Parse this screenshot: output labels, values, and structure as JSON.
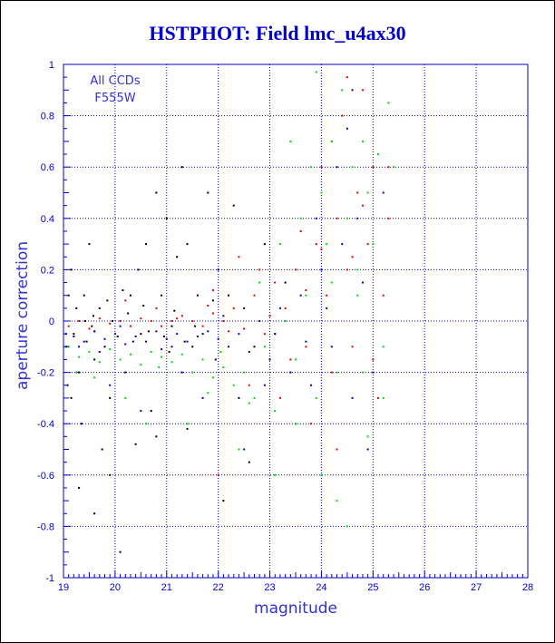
{
  "chart_data": {
    "type": "scatter",
    "title": "HSTPHOT: Field lmc_u4ax30",
    "xlabel": "magnitude",
    "ylabel": "aperture correction",
    "xlim": [
      19,
      28
    ],
    "ylim": [
      -1,
      1
    ],
    "x_ticks": [
      "19",
      "20",
      "21",
      "22",
      "23",
      "24",
      "25",
      "26",
      "27",
      "28"
    ],
    "y_ticks": [
      "-1",
      "-0.8",
      "-0.6",
      "-0.4",
      "-0.2",
      "0",
      "0.2",
      "0.4",
      "0.6",
      "0.8",
      "1"
    ],
    "grid": true,
    "legend": [
      "All CCDs",
      "F555W"
    ],
    "legend_position": "top-left",
    "colors": {
      "title": "#0000cc",
      "axis": "#0000cc",
      "grid": "#0000cc",
      "labels": "#3333cc"
    },
    "series": [
      {
        "color": "#000000",
        "points": [
          [
            19.05,
            -0.1
          ],
          [
            19.1,
            0.1
          ],
          [
            19.15,
            -0.3
          ],
          [
            19.2,
            -0.05
          ],
          [
            19.25,
            0.05
          ],
          [
            19.3,
            -0.2
          ],
          [
            19.35,
            -0.4
          ],
          [
            19.4,
            0.1
          ],
          [
            19.45,
            -0.08
          ],
          [
            19.5,
            0.3
          ],
          [
            19.55,
            -0.02
          ],
          [
            19.6,
            -0.15
          ],
          [
            19.7,
            0.05
          ],
          [
            19.75,
            -0.5
          ],
          [
            19.8,
            -0.1
          ],
          [
            19.85,
            0.08
          ],
          [
            19.9,
            -0.3
          ],
          [
            19.95,
            0.0
          ],
          [
            20.05,
            -0.06
          ],
          [
            20.1,
            -0.9
          ],
          [
            20.15,
            0.12
          ],
          [
            20.2,
            -0.2
          ],
          [
            20.3,
            0.1
          ],
          [
            20.4,
            -0.48
          ],
          [
            20.45,
            0.2
          ],
          [
            20.5,
            -0.05
          ],
          [
            20.6,
            0.3
          ],
          [
            20.7,
            -0.35
          ],
          [
            20.8,
            0.5
          ],
          [
            20.9,
            0.1
          ],
          [
            21.0,
            0.4
          ],
          [
            21.05,
            -0.12
          ],
          [
            21.1,
            -0.02
          ],
          [
            21.2,
            0.25
          ],
          [
            21.3,
            0.6
          ],
          [
            21.35,
            -0.08
          ],
          [
            21.4,
            0.3
          ],
          [
            21.5,
            -0.1
          ],
          [
            21.6,
            0.1
          ],
          [
            21.7,
            -0.05
          ],
          [
            21.8,
            0.5
          ],
          [
            21.9,
            0.08
          ],
          [
            21.95,
            -0.15
          ],
          [
            22.0,
            0.2
          ],
          [
            22.1,
            -0.7
          ],
          [
            22.2,
            0.1
          ],
          [
            22.3,
            0.45
          ],
          [
            22.4,
            -0.3
          ],
          [
            22.5,
            0.05
          ],
          [
            22.7,
            -0.1
          ],
          [
            22.9,
            0.3
          ],
          [
            23.1,
            -0.05
          ],
          [
            23.3,
            0.15
          ],
          [
            20.8,
            -0.45
          ],
          [
            19.9,
            -0.6
          ],
          [
            21.4,
            -0.42
          ],
          [
            22.6,
            -0.55
          ],
          [
            19.3,
            -0.65
          ],
          [
            19.6,
            -0.75
          ],
          [
            19.15,
            0.2
          ],
          [
            20.25,
            0.03
          ],
          [
            20.35,
            -0.08
          ],
          [
            20.55,
            0.06
          ],
          [
            20.65,
            -0.04
          ],
          [
            19.42,
            0.0
          ],
          [
            19.58,
            0.02
          ],
          [
            20.95,
            -0.06
          ],
          [
            21.15,
            0.04
          ],
          [
            21.55,
            -0.02
          ],
          [
            19.08,
            -0.25
          ]
        ]
      },
      {
        "color": "#ee0000",
        "points": [
          [
            19.1,
            -0.02
          ],
          [
            19.3,
            0.0
          ],
          [
            19.5,
            -0.03
          ],
          [
            19.7,
            0.01
          ],
          [
            19.9,
            -0.01
          ],
          [
            20.1,
            0.0
          ],
          [
            20.3,
            -0.02
          ],
          [
            20.5,
            0.01
          ],
          [
            20.7,
            0.0
          ],
          [
            20.9,
            -0.02
          ],
          [
            21.1,
            0.0
          ],
          [
            21.3,
            0.02
          ],
          [
            21.5,
            0.0
          ],
          [
            21.7,
            -0.02
          ],
          [
            21.9,
            0.03
          ],
          [
            22.1,
            0.0
          ],
          [
            22.3,
            0.05
          ],
          [
            22.5,
            -0.03
          ],
          [
            22.7,
            0.1
          ],
          [
            22.9,
            -0.05
          ],
          [
            23.1,
            0.15
          ],
          [
            23.3,
            0.05
          ],
          [
            23.5,
            0.2
          ],
          [
            23.7,
            -0.1
          ],
          [
            23.9,
            0.3
          ],
          [
            24.0,
            0.6
          ],
          [
            24.1,
            0.1
          ],
          [
            24.2,
            -0.2
          ],
          [
            24.3,
            0.4
          ],
          [
            24.4,
            0.8
          ],
          [
            24.5,
            0.2
          ],
          [
            24.6,
            -0.1
          ],
          [
            24.7,
            0.5
          ],
          [
            24.8,
            0.9
          ],
          [
            24.9,
            0.3
          ],
          [
            25.0,
            0.6
          ],
          [
            25.1,
            -0.3
          ],
          [
            25.2,
            0.1
          ],
          [
            25.3,
            0.4
          ],
          [
            23.2,
            -0.3
          ],
          [
            23.8,
            -0.4
          ],
          [
            24.3,
            -0.5
          ],
          [
            22.4,
            0.25
          ],
          [
            21.9,
            0.12
          ],
          [
            22.8,
            0.2
          ],
          [
            23.6,
            0.35
          ],
          [
            24.5,
            0.95
          ],
          [
            24.2,
            0.7
          ],
          [
            25.3,
            0.6
          ],
          [
            22.0,
            -0.6
          ],
          [
            22.6,
            -0.25
          ],
          [
            23.4,
            -0.15
          ],
          [
            24.6,
            0.25
          ],
          [
            20.2,
            0.08
          ],
          [
            20.8,
            0.05
          ],
          [
            19.6,
            -0.04
          ],
          [
            21.2,
            0.01
          ],
          [
            21.8,
            0.06
          ],
          [
            22.2,
            -0.04
          ],
          [
            23.0,
            0.02
          ],
          [
            23.7,
            0.12
          ],
          [
            24.0,
            0.28
          ],
          [
            24.8,
            0.45
          ],
          [
            25.0,
            -0.15
          ]
        ]
      },
      {
        "color": "#0000cc",
        "points": [
          [
            19.05,
            -0.05
          ],
          [
            19.2,
            -0.06
          ],
          [
            19.4,
            -0.08
          ],
          [
            19.6,
            -0.04
          ],
          [
            19.8,
            -0.07
          ],
          [
            20.0,
            -0.05
          ],
          [
            20.2,
            -0.09
          ],
          [
            20.4,
            -0.06
          ],
          [
            20.6,
            -0.08
          ],
          [
            20.8,
            -0.04
          ],
          [
            21.0,
            -0.07
          ],
          [
            21.2,
            -0.05
          ],
          [
            21.4,
            -0.08
          ],
          [
            21.6,
            -0.06
          ],
          [
            21.8,
            -0.04
          ],
          [
            22.0,
            -0.07
          ],
          [
            22.2,
            -0.1
          ],
          [
            22.4,
            -0.05
          ],
          [
            22.6,
            -0.12
          ],
          [
            22.8,
            0.0
          ],
          [
            23.0,
            -0.15
          ],
          [
            23.2,
            0.05
          ],
          [
            23.4,
            -0.2
          ],
          [
            23.6,
            0.1
          ],
          [
            23.8,
            -0.25
          ],
          [
            24.0,
            0.2
          ],
          [
            24.2,
            -0.1
          ],
          [
            24.4,
            0.3
          ],
          [
            24.6,
            -0.3
          ],
          [
            24.8,
            0.15
          ],
          [
            25.0,
            -0.2
          ],
          [
            25.2,
            0.5
          ],
          [
            24.3,
            0.6
          ],
          [
            24.7,
            0.4
          ],
          [
            23.5,
            -0.4
          ],
          [
            22.5,
            -0.5
          ],
          [
            21.7,
            -0.3
          ],
          [
            19.9,
            -0.25
          ],
          [
            20.5,
            -0.35
          ],
          [
            24.9,
            -0.5
          ],
          [
            23.9,
            0.4
          ],
          [
            24.5,
            0.75
          ],
          [
            19.3,
            -0.1
          ],
          [
            20.1,
            -0.02
          ],
          [
            21.1,
            -0.1
          ],
          [
            22.1,
            0.02
          ],
          [
            23.1,
            -0.05
          ],
          [
            24.1,
            0.05
          ],
          [
            19.7,
            -0.12
          ],
          [
            20.9,
            -0.11
          ],
          [
            22.9,
            -0.25
          ],
          [
            23.7,
            -0.08
          ],
          [
            24.6,
            0.9
          ],
          [
            21.3,
            -0.2
          ]
        ]
      },
      {
        "color": "#00dd00",
        "points": [
          [
            19.1,
            -0.1
          ],
          [
            19.3,
            -0.14
          ],
          [
            19.5,
            -0.12
          ],
          [
            19.7,
            -0.16
          ],
          [
            19.9,
            -0.11
          ],
          [
            20.1,
            -0.15
          ],
          [
            20.3,
            -0.13
          ],
          [
            20.5,
            -0.17
          ],
          [
            20.7,
            -0.12
          ],
          [
            20.9,
            -0.14
          ],
          [
            21.1,
            -0.16
          ],
          [
            21.3,
            -0.13
          ],
          [
            21.5,
            -0.2
          ],
          [
            21.7,
            -0.15
          ],
          [
            21.9,
            -0.22
          ],
          [
            22.1,
            -0.18
          ],
          [
            22.3,
            -0.25
          ],
          [
            22.5,
            -0.2
          ],
          [
            22.7,
            -0.3
          ],
          [
            22.9,
            -0.1
          ],
          [
            23.1,
            -0.35
          ],
          [
            23.3,
            0.0
          ],
          [
            23.5,
            -0.4
          ],
          [
            23.7,
            0.1
          ],
          [
            23.9,
            -0.3
          ],
          [
            24.0,
            0.5
          ],
          [
            24.1,
            0.3
          ],
          [
            24.2,
            0.7
          ],
          [
            24.3,
            -0.2
          ],
          [
            24.4,
            0.9
          ],
          [
            24.5,
            0.4
          ],
          [
            24.6,
            0.6
          ],
          [
            24.7,
            0.2
          ],
          [
            24.8,
            0.7
          ],
          [
            24.9,
            0.5
          ],
          [
            25.0,
            0.3
          ],
          [
            25.1,
            0.65
          ],
          [
            25.2,
            -0.1
          ],
          [
            25.3,
            0.85
          ],
          [
            23.4,
            0.7
          ],
          [
            23.6,
            0.4
          ],
          [
            24.0,
            -0.6
          ],
          [
            24.3,
            -0.7
          ],
          [
            23.1,
            -0.6
          ],
          [
            22.4,
            -0.5
          ],
          [
            21.4,
            -0.4
          ],
          [
            20.2,
            -0.3
          ],
          [
            19.6,
            -0.22
          ],
          [
            24.9,
            -0.45
          ],
          [
            25.2,
            -0.3
          ],
          [
            23.9,
            0.97
          ],
          [
            24.5,
            -0.8
          ],
          [
            22.8,
            0.15
          ],
          [
            23.2,
            0.3
          ],
          [
            23.8,
            0.6
          ],
          [
            24.7,
            0.1
          ],
          [
            20.6,
            -0.4
          ],
          [
            21.8,
            -0.28
          ],
          [
            22.6,
            -0.32
          ],
          [
            23.5,
            -0.15
          ],
          [
            24.2,
            0.15
          ],
          [
            24.8,
            -0.2
          ],
          [
            25.4,
            0.6
          ],
          [
            19.25,
            -0.2
          ],
          [
            20.85,
            -0.18
          ],
          [
            22.05,
            -0.12
          ]
        ]
      }
    ]
  }
}
